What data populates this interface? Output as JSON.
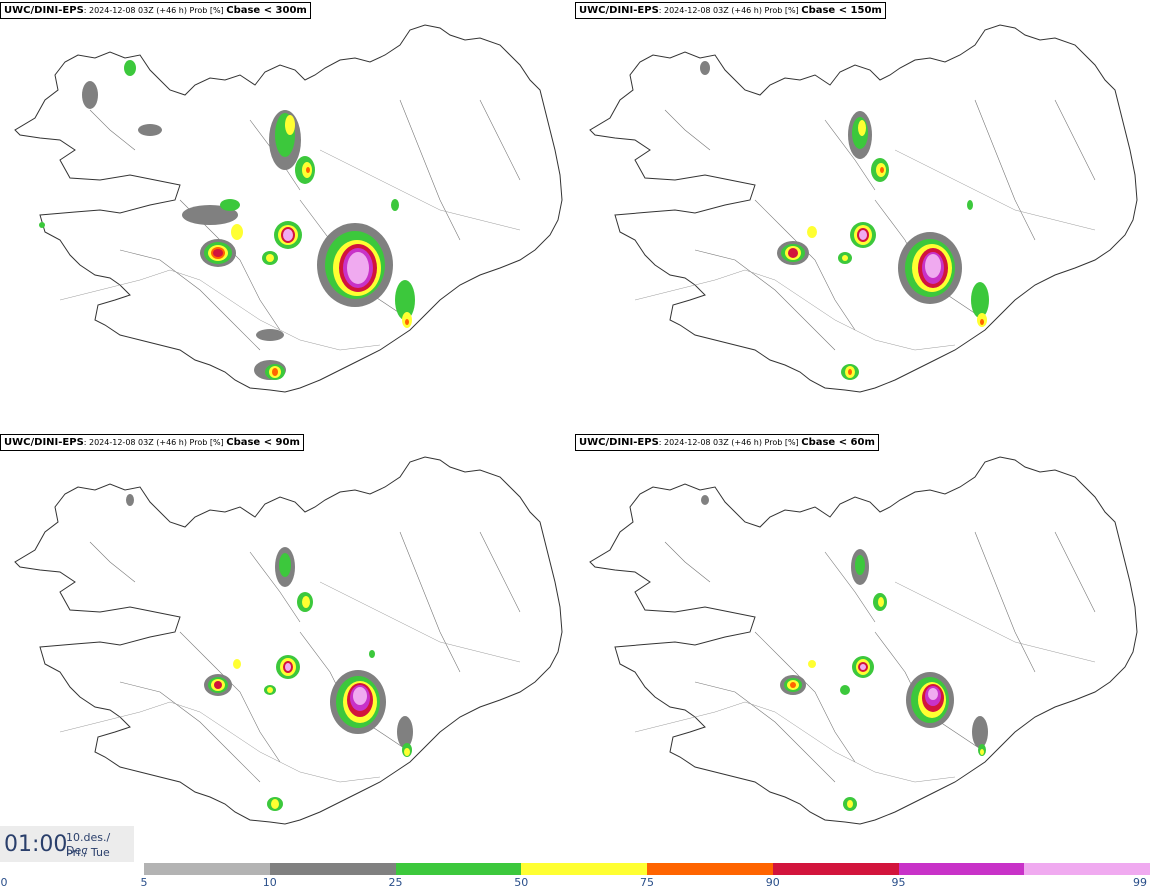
{
  "panels": [
    {
      "source": "UWC/DINI-EPS",
      "meta": ": 2024-12-08 03Z (+46 h) Prob [%] ",
      "param": "Cbase < 300m"
    },
    {
      "source": "UWC/DINI-EPS",
      "meta": ": 2024-12-08 03Z (+46 h) Prob [%] ",
      "param": "Cbase < 150m"
    },
    {
      "source": "UWC/DINI-EPS",
      "meta": ": 2024-12-08 03Z (+46 h) Prob [%] ",
      "param": "Cbase < 90m"
    },
    {
      "source": "UWC/DINI-EPS",
      "meta": ": 2024-12-08 03Z (+46 h) Prob [%] ",
      "param": "Cbase < 60m"
    }
  ],
  "valid_time": {
    "time": "01:00",
    "date_line1": "10.des./ Dec",
    "date_line2": "Þri./ Tue"
  },
  "legend": {
    "ticks": [
      "0",
      "5",
      "10",
      "25",
      "50",
      "75",
      "90",
      "95",
      "99"
    ],
    "colors": [
      "#b3b3b3",
      "#808080",
      "#3cc83c",
      "#ffff32",
      "#ff6400",
      "#d2143c",
      "#c832c8",
      "#f0aaf0"
    ]
  },
  "colors": {
    "p5": "#b3b3b3",
    "p10": "#808080",
    "p25": "#3cc83c",
    "p50": "#ffff32",
    "p75": "#ff6400",
    "p90": "#d2143c",
    "p95": "#c832c8",
    "p99": "#f0aaf0"
  }
}
